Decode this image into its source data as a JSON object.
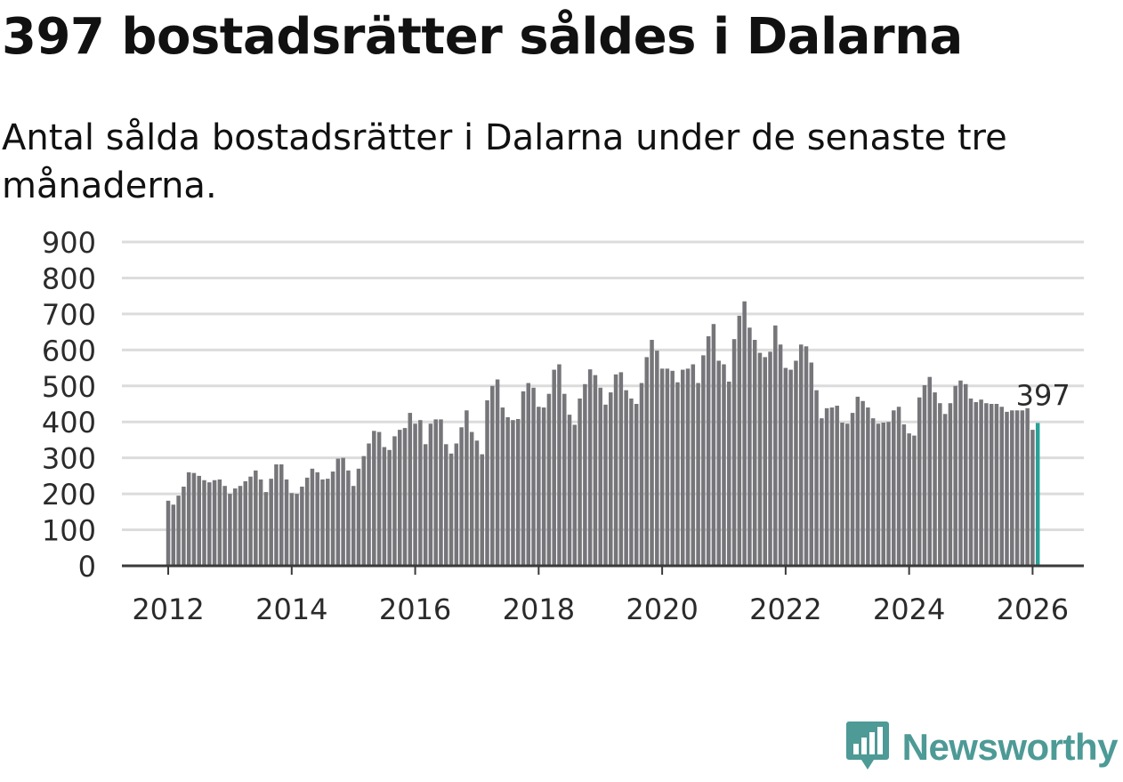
{
  "header": {
    "title": "397 bostadsrätter såldes i Dalarna",
    "subtitle": "Antal sålda bostadsrätter i Dalarna under de senaste tre månaderna."
  },
  "brand": {
    "name": "Newsworthy",
    "logo_icon": "newsworthy-bar-chart-icon",
    "color": "#4d9a96"
  },
  "chart_data": {
    "type": "bar",
    "title": "397 bostadsrätter såldes i Dalarna",
    "subtitle": "Antal sålda bostadsrätter i Dalarna under de senaste tre månaderna.",
    "xlabel": "",
    "ylabel": "",
    "ylim": [
      0,
      900
    ],
    "yticks": [
      0,
      100,
      200,
      300,
      400,
      500,
      600,
      700,
      800,
      900
    ],
    "xticks": [
      2012,
      2014,
      2016,
      2018,
      2020,
      2022,
      2024,
      2026
    ],
    "x_range": [
      2011.25,
      2026.83
    ],
    "grid": true,
    "bar_color": "#76767a",
    "highlight_color": "#2aa198",
    "start": {
      "year": 2012,
      "month": 1
    },
    "values": [
      181,
      170,
      195,
      220,
      260,
      258,
      250,
      238,
      232,
      238,
      240,
      222,
      200,
      215,
      222,
      235,
      248,
      265,
      240,
      205,
      242,
      282,
      282,
      240,
      202,
      200,
      220,
      245,
      270,
      260,
      240,
      242,
      262,
      298,
      300,
      265,
      222,
      270,
      305,
      340,
      375,
      372,
      330,
      322,
      360,
      378,
      383,
      425,
      395,
      405,
      338,
      395,
      407,
      407,
      338,
      312,
      340,
      385,
      432,
      372,
      348,
      310,
      460,
      500,
      518,
      440,
      413,
      405,
      408,
      485,
      508,
      495,
      442,
      440,
      478,
      545,
      560,
      478,
      420,
      392,
      465,
      505,
      546,
      530,
      495,
      448,
      482,
      532,
      538,
      488,
      465,
      450,
      508,
      580,
      628,
      598,
      548,
      548,
      542,
      510,
      545,
      548,
      560,
      508,
      585,
      638,
      672,
      570,
      560,
      512,
      630,
      695,
      735,
      662,
      628,
      592,
      580,
      595,
      668,
      615,
      550,
      545,
      570,
      615,
      610,
      565,
      488,
      410,
      438,
      440,
      445,
      398,
      395,
      425,
      470,
      458,
      440,
      410,
      395,
      398,
      400,
      432,
      442,
      393,
      368,
      362,
      468,
      502,
      525,
      482,
      452,
      422,
      452,
      500,
      515,
      505,
      465,
      455,
      462,
      452,
      450,
      450,
      442,
      428,
      432,
      432,
      432,
      438,
      378,
      397
    ],
    "highlight_index": 169,
    "annotation": {
      "label": "397",
      "value": 397
    }
  }
}
